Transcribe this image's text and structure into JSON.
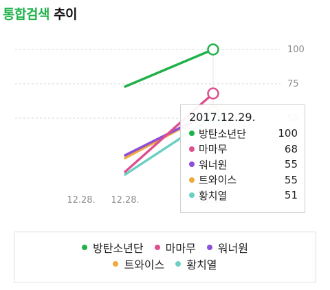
{
  "title": {
    "highlight": "통합검색",
    "rest": "추이"
  },
  "chart_data": {
    "type": "line",
    "categories": [
      "12.28.",
      "12.28.",
      "12.29."
    ],
    "y_ticks": [
      100,
      75,
      50
    ],
    "grid": true,
    "legend_position": "bottom",
    "series": [
      {
        "name": "방탄소년단",
        "color": "#1fb14a",
        "values": [
          null,
          73,
          100
        ]
      },
      {
        "name": "마마무",
        "color": "#dd4f8e",
        "values": [
          null,
          11,
          68
        ]
      },
      {
        "name": "워너원",
        "color": "#8c4fd6",
        "values": [
          null,
          23,
          55
        ]
      },
      {
        "name": "트와이스",
        "color": "#f2a93b",
        "values": [
          null,
          21,
          55
        ]
      },
      {
        "name": "황치열",
        "color": "#6ccfc4",
        "values": [
          null,
          9,
          51
        ]
      }
    ],
    "tooltip": {
      "date": "2017.12.29.",
      "rows": [
        {
          "name": "방탄소년단",
          "value": "100",
          "color": "#1fb14a"
        },
        {
          "name": "마마무",
          "value": "68",
          "color": "#dd4f8e"
        },
        {
          "name": "워너원",
          "value": "55",
          "color": "#8c4fd6"
        },
        {
          "name": "트와이스",
          "value": "55",
          "color": "#f2a93b"
        },
        {
          "name": "황치열",
          "value": "51",
          "color": "#6ccfc4"
        }
      ]
    }
  }
}
